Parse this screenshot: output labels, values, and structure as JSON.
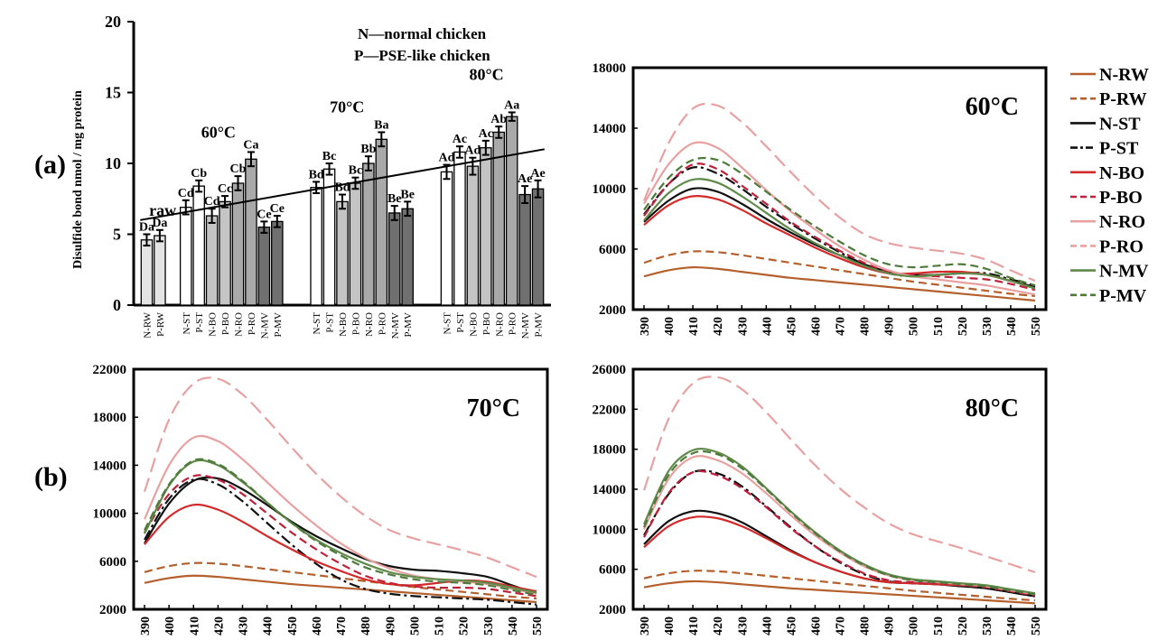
{
  "panel_labels": {
    "a": "(a)",
    "b": "(b)"
  },
  "legend": {
    "title_normal": "N—normal chicken",
    "title_pse": "P—PSE-like chicken"
  },
  "series_style": {
    "N-RW": {
      "color": "#b5602c",
      "dash": "solid"
    },
    "P-RW": {
      "color": "#b5602c",
      "dash": "dashed"
    },
    "N-ST": {
      "color": "#111111",
      "dash": "solid"
    },
    "P-ST": {
      "color": "#111111",
      "dash": "dashdot"
    },
    "N-BO": {
      "color": "#d42a2a",
      "dash": "solid"
    },
    "P-BO": {
      "color": "#c0203a",
      "dash": "dashed"
    },
    "N-RO": {
      "color": "#e8a0a0",
      "dash": "solid"
    },
    "P-RO": {
      "color": "#e8a0a0",
      "dash": "longdash"
    },
    "N-MV": {
      "color": "#5f8a4a",
      "dash": "solid"
    },
    "P-MV": {
      "color": "#4f7a3a",
      "dash": "dashed"
    }
  },
  "chart_data": [
    {
      "type": "bar",
      "id": "disulfide",
      "ylabel": "Disulfide bond nmol / mg protein",
      "ylim": [
        0,
        20
      ],
      "yticks": [
        0,
        5,
        10,
        15,
        20
      ],
      "bar_width": 0.85,
      "groups": [
        {
          "label": "raw",
          "center": 2.5
        },
        {
          "label": "60°C",
          "center": 6.5
        },
        {
          "label": "70°C",
          "center": 16.5
        },
        {
          "label": "80°C",
          "center": 26.5
        }
      ],
      "bars": [
        {
          "x": 1,
          "category": "N-RW",
          "value": 4.6,
          "error": 0.4,
          "label": "Da",
          "fill": "#e4e4e4"
        },
        {
          "x": 2,
          "category": "P-RW",
          "value": 4.9,
          "error": 0.4,
          "label": "Da",
          "fill": "#e4e4e4"
        },
        {
          "x": 4,
          "category": "N-ST",
          "value": 6.9,
          "error": 0.5,
          "label": "Cd",
          "fill": "#ffffff"
        },
        {
          "x": 5,
          "category": "P-ST",
          "value": 8.4,
          "error": 0.4,
          "label": "Cb",
          "fill": "#ffffff"
        },
        {
          "x": 6,
          "category": "N-BO",
          "value": 6.3,
          "error": 0.5,
          "label": "Cd",
          "fill": "#c4c4c4"
        },
        {
          "x": 7,
          "category": "P-BO",
          "value": 7.3,
          "error": 0.4,
          "label": "Cc",
          "fill": "#c4c4c4"
        },
        {
          "x": 8,
          "category": "N-RO",
          "value": 8.6,
          "error": 0.5,
          "label": "Cb",
          "fill": "#a9a9a9"
        },
        {
          "x": 9,
          "category": "P-RO",
          "value": 10.3,
          "error": 0.5,
          "label": "Ca",
          "fill": "#a9a9a9"
        },
        {
          "x": 10,
          "category": "N-MV",
          "value": 5.5,
          "error": 0.4,
          "label": "Ce",
          "fill": "#707070"
        },
        {
          "x": 11,
          "category": "P-MV",
          "value": 5.9,
          "error": 0.4,
          "label": "Ce",
          "fill": "#707070"
        },
        {
          "x": 14,
          "category": "N-ST",
          "value": 8.3,
          "error": 0.4,
          "label": "Bd",
          "fill": "#ffffff"
        },
        {
          "x": 15,
          "category": "P-ST",
          "value": 9.6,
          "error": 0.4,
          "label": "Bc",
          "fill": "#ffffff"
        },
        {
          "x": 16,
          "category": "N-BO",
          "value": 7.3,
          "error": 0.5,
          "label": "Bd",
          "fill": "#c4c4c4"
        },
        {
          "x": 17,
          "category": "P-BO",
          "value": 8.6,
          "error": 0.4,
          "label": "Bc",
          "fill": "#c4c4c4"
        },
        {
          "x": 18,
          "category": "N-RO",
          "value": 10.0,
          "error": 0.5,
          "label": "Bb",
          "fill": "#a9a9a9"
        },
        {
          "x": 19,
          "category": "P-RO",
          "value": 11.7,
          "error": 0.5,
          "label": "Ba",
          "fill": "#a9a9a9"
        },
        {
          "x": 20,
          "category": "N-MV",
          "value": 6.5,
          "error": 0.5,
          "label": "Be",
          "fill": "#707070"
        },
        {
          "x": 21,
          "category": "P-MV",
          "value": 6.8,
          "error": 0.5,
          "label": "Be",
          "fill": "#707070"
        },
        {
          "x": 24,
          "category": "N-ST",
          "value": 9.4,
          "error": 0.5,
          "label": "Ad",
          "fill": "#ffffff"
        },
        {
          "x": 25,
          "category": "P-ST",
          "value": 10.8,
          "error": 0.4,
          "label": "Ac",
          "fill": "#ffffff"
        },
        {
          "x": 26,
          "category": "N-BO",
          "value": 9.8,
          "error": 0.6,
          "label": "Ad",
          "fill": "#c4c4c4"
        },
        {
          "x": 27,
          "category": "P-BO",
          "value": 11.1,
          "error": 0.5,
          "label": "Ac",
          "fill": "#c4c4c4"
        },
        {
          "x": 28,
          "category": "N-RO",
          "value": 12.2,
          "error": 0.4,
          "label": "Ab",
          "fill": "#a9a9a9"
        },
        {
          "x": 29,
          "category": "P-RO",
          "value": 13.3,
          "error": 0.3,
          "label": "Aa",
          "fill": "#a9a9a9"
        },
        {
          "x": 30,
          "category": "N-MV",
          "value": 7.8,
          "error": 0.6,
          "label": "Ae",
          "fill": "#707070"
        },
        {
          "x": 31,
          "category": "P-MV",
          "value": 8.2,
          "error": 0.6,
          "label": "Ae",
          "fill": "#707070"
        }
      ],
      "trendline": {
        "x": [
          0.5,
          31.5
        ],
        "y": [
          6.0,
          11.0
        ]
      },
      "xlim": [
        0,
        32
      ]
    },
    {
      "type": "line",
      "id": "fl60",
      "title": "60°C",
      "ylim": [
        2000,
        18000
      ],
      "yticks": [
        2000,
        6000,
        10000,
        14000,
        18000
      ],
      "x": [
        390,
        400,
        410,
        420,
        430,
        440,
        450,
        460,
        470,
        480,
        490,
        500,
        510,
        520,
        530,
        540,
        550
      ],
      "series": [
        {
          "name": "N-RW",
          "values": [
            4200,
            4600,
            4800,
            4700,
            4500,
            4300,
            4100,
            3950,
            3800,
            3650,
            3500,
            3350,
            3200,
            3050,
            2900,
            2750,
            2600
          ]
        },
        {
          "name": "P-RW",
          "values": [
            5100,
            5600,
            5850,
            5800,
            5600,
            5350,
            5100,
            4850,
            4600,
            4350,
            4100,
            3850,
            3650,
            3450,
            3250,
            3050,
            2900
          ]
        },
        {
          "name": "N-ST",
          "values": [
            7800,
            9200,
            10000,
            9800,
            9000,
            8000,
            7100,
            6300,
            5600,
            5000,
            4500,
            4300,
            4300,
            4400,
            4300,
            3900,
            3500
          ]
        },
        {
          "name": "P-ST",
          "values": [
            8300,
            10300,
            11400,
            11000,
            10000,
            8800,
            7700,
            6700,
            5800,
            5000,
            4400,
            4200,
            4300,
            4400,
            4400,
            4000,
            3600
          ]
        },
        {
          "name": "N-BO",
          "values": [
            7600,
            8900,
            9500,
            9300,
            8600,
            7700,
            6900,
            6100,
            5400,
            4800,
            4400,
            4400,
            4500,
            4500,
            4300,
            3900,
            3400
          ]
        },
        {
          "name": "P-BO",
          "values": [
            8200,
            10300,
            11600,
            11300,
            10200,
            9000,
            7800,
            6800,
            5900,
            5100,
            4500,
            4300,
            4200,
            4100,
            4000,
            3700,
            3300
          ]
        },
        {
          "name": "N-RO",
          "values": [
            9000,
            11600,
            13000,
            12700,
            11400,
            9900,
            8500,
            7300,
            6200,
            5300,
            4600,
            4200,
            4000,
            3800,
            3600,
            3300,
            3000
          ]
        },
        {
          "name": "P-RO",
          "values": [
            9200,
            13000,
            15300,
            15500,
            14400,
            12800,
            11100,
            9500,
            8100,
            7000,
            6400,
            6100,
            5900,
            5700,
            5300,
            4600,
            3900
          ]
        },
        {
          "name": "N-MV",
          "values": [
            7900,
            9700,
            10600,
            10400,
            9500,
            8400,
            7300,
            6400,
            5600,
            4900,
            4400,
            4200,
            4300,
            4400,
            4300,
            3900,
            3400
          ]
        },
        {
          "name": "P-MV",
          "values": [
            8600,
            10700,
            11900,
            11900,
            11000,
            9800,
            8600,
            7500,
            6500,
            5600,
            5000,
            4800,
            4900,
            5000,
            4700,
            4100,
            3600
          ]
        }
      ]
    },
    {
      "type": "line",
      "id": "fl70",
      "title": "70°C",
      "ylim": [
        2000,
        22000
      ],
      "yticks": [
        2000,
        6000,
        10000,
        14000,
        18000,
        22000
      ],
      "x": [
        390,
        400,
        410,
        420,
        430,
        440,
        450,
        460,
        470,
        480,
        490,
        500,
        510,
        520,
        530,
        540,
        550
      ],
      "series": [
        {
          "name": "N-RW",
          "values": [
            4200,
            4600,
            4800,
            4700,
            4500,
            4300,
            4100,
            3950,
            3800,
            3650,
            3500,
            3350,
            3200,
            3050,
            2900,
            2750,
            2600
          ]
        },
        {
          "name": "P-RW",
          "values": [
            5100,
            5600,
            5850,
            5800,
            5600,
            5350,
            5100,
            4850,
            4600,
            4350,
            4100,
            3850,
            3650,
            3450,
            3250,
            3050,
            2900
          ]
        },
        {
          "name": "N-ST",
          "values": [
            7500,
            10800,
            12700,
            12900,
            12000,
            10700,
            9300,
            8100,
            7100,
            6200,
            5600,
            5300,
            5200,
            5000,
            4700,
            4000,
            3300
          ]
        },
        {
          "name": "P-ST",
          "values": [
            7800,
            11200,
            12800,
            12400,
            11000,
            9200,
            7400,
            5800,
            4500,
            3700,
            3300,
            3100,
            3000,
            2900,
            2800,
            2600,
            2400
          ]
        },
        {
          "name": "N-BO",
          "values": [
            7400,
            9700,
            10700,
            10300,
            9300,
            8100,
            7000,
            6000,
            5200,
            4500,
            4100,
            4000,
            4200,
            4400,
            4300,
            3900,
            3500
          ]
        },
        {
          "name": "P-BO",
          "values": [
            8400,
            11600,
            13100,
            12800,
            11600,
            10000,
            8400,
            7000,
            5800,
            4800,
            4200,
            3900,
            3800,
            3800,
            3700,
            3400,
            3100
          ]
        },
        {
          "name": "N-RO",
          "values": [
            9500,
            14000,
            16300,
            16000,
            14500,
            12600,
            10700,
            9000,
            7500,
            6300,
            5400,
            4800,
            4500,
            4300,
            4100,
            3700,
            3300
          ]
        },
        {
          "name": "P-RO",
          "values": [
            11800,
            17800,
            20800,
            21200,
            19900,
            17800,
            15500,
            13300,
            11400,
            9800,
            8600,
            7900,
            7400,
            6900,
            6300,
            5500,
            4700
          ]
        },
        {
          "name": "N-MV",
          "values": [
            8300,
            12300,
            14300,
            14000,
            12600,
            10900,
            9200,
            7800,
            6700,
            5800,
            5100,
            4700,
            4500,
            4400,
            4200,
            3800,
            3400
          ]
        },
        {
          "name": "P-MV",
          "values": [
            8600,
            12400,
            14400,
            14100,
            12700,
            10900,
            9200,
            7700,
            6500,
            5500,
            4900,
            4500,
            4300,
            4200,
            4000,
            3600,
            3200
          ]
        }
      ]
    },
    {
      "type": "line",
      "id": "fl80",
      "title": "80°C",
      "ylim": [
        2000,
        26000
      ],
      "yticks": [
        2000,
        6000,
        10000,
        14000,
        18000,
        22000,
        26000
      ],
      "x": [
        390,
        400,
        410,
        420,
        430,
        440,
        450,
        460,
        470,
        480,
        490,
        500,
        510,
        520,
        530,
        540,
        550
      ],
      "series": [
        {
          "name": "N-RW",
          "values": [
            4200,
            4600,
            4800,
            4700,
            4500,
            4300,
            4100,
            3950,
            3800,
            3650,
            3500,
            3350,
            3200,
            3050,
            2900,
            2750,
            2600
          ]
        },
        {
          "name": "P-RW",
          "values": [
            5100,
            5600,
            5850,
            5800,
            5600,
            5350,
            5100,
            4850,
            4600,
            4350,
            4100,
            3850,
            3650,
            3450,
            3250,
            3050,
            2900
          ]
        },
        {
          "name": "N-ST",
          "values": [
            8500,
            10800,
            11800,
            11600,
            10700,
            9300,
            7900,
            6700,
            5800,
            5100,
            4700,
            4600,
            4500,
            4300,
            4100,
            3700,
            3300
          ]
        },
        {
          "name": "P-ST",
          "values": [
            9400,
            13500,
            15700,
            15600,
            14300,
            12300,
            10200,
            8300,
            6700,
            5500,
            4800,
            4600,
            4500,
            4300,
            4100,
            3700,
            3300
          ]
        },
        {
          "name": "N-BO",
          "values": [
            8200,
            10300,
            11200,
            11100,
            10300,
            9100,
            7800,
            6700,
            5800,
            5100,
            4700,
            4600,
            4500,
            4400,
            4300,
            3900,
            3500
          ]
        },
        {
          "name": "P-BO",
          "values": [
            9200,
            13600,
            15700,
            15400,
            14100,
            12200,
            10100,
            8300,
            6800,
            5600,
            4900,
            4700,
            4600,
            4400,
            4200,
            3800,
            3400
          ]
        },
        {
          "name": "N-RO",
          "values": [
            10000,
            15000,
            17200,
            16900,
            15600,
            13600,
            11400,
            9400,
            7700,
            6300,
            5400,
            4900,
            4700,
            4500,
            4300,
            3900,
            3500
          ]
        },
        {
          "name": "P-RO",
          "values": [
            13900,
            21000,
            24600,
            25200,
            24000,
            21700,
            19000,
            16400,
            14100,
            12200,
            10600,
            9500,
            8800,
            8100,
            7300,
            6500,
            5700
          ]
        },
        {
          "name": "N-MV",
          "values": [
            10500,
            15800,
            17900,
            17700,
            16300,
            14100,
            11800,
            9700,
            7900,
            6500,
            5500,
            5000,
            4800,
            4600,
            4400,
            4000,
            3600
          ]
        },
        {
          "name": "P-MV",
          "values": [
            10200,
            15400,
            17600,
            17500,
            16100,
            14000,
            11700,
            9600,
            7800,
            6400,
            5400,
            4900,
            4700,
            4500,
            4300,
            3900,
            3500
          ]
        }
      ]
    }
  ]
}
